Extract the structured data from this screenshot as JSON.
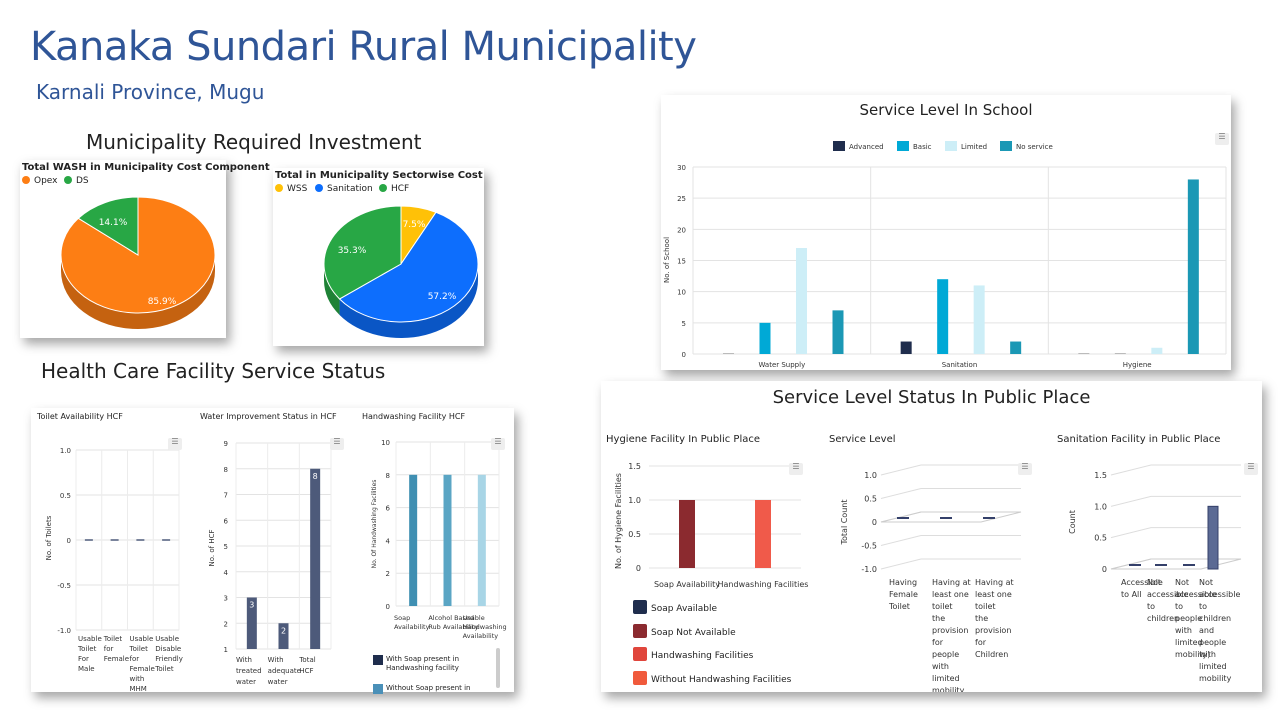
{
  "header": {
    "title": "Kanaka Sundari Rural Municipality",
    "subtitle": "Karnali Province, Mugu"
  },
  "sections": {
    "investment": "Municipality Required Investment",
    "hcf": "Health Care Facility Service Status"
  },
  "ui": {
    "menu_icon": "☰"
  },
  "colors": {
    "brand": "#2f5597",
    "opex": "#fd7e14",
    "ds": "#28a745",
    "wss": "#ffc107",
    "sanitation": "#0d6efd",
    "hcf": "#28a745",
    "advanced": "#1f2d4d",
    "basic": "#00a9d6",
    "limited": "#cdeef7",
    "no_service": "#1b98b5",
    "hcf_bar": "#4d5a7a"
  },
  "chart_data": [
    {
      "type": "pie",
      "title": "Total WASH in Municipality Cost Component",
      "labels": [
        "Opex",
        "DS"
      ],
      "values": [
        85.9,
        14.1
      ],
      "data_labels": [
        "85.9%",
        "14.1%"
      ]
    },
    {
      "type": "pie",
      "title": "Total in Municipality Sectorwise Cost",
      "labels": [
        "WSS",
        "Sanitation",
        "HCF"
      ],
      "values": [
        7.5,
        57.2,
        35.3
      ],
      "data_labels": [
        "7.5%",
        "57.2%",
        "35.3%"
      ]
    },
    {
      "type": "bar",
      "title": "Service Level In School",
      "categories": [
        "Water Supply",
        "Sanitation",
        "Hygiene"
      ],
      "series": [
        {
          "name": "Advanced",
          "values": [
            0,
            2,
            0
          ]
        },
        {
          "name": "Basic",
          "values": [
            5,
            12,
            0
          ]
        },
        {
          "name": "Limited",
          "values": [
            17,
            11,
            1
          ]
        },
        {
          "name": "No service",
          "values": [
            7,
            2,
            28
          ]
        }
      ],
      "ylabel": "No. of School",
      "ylim": [
        0,
        30
      ],
      "yticks": [
        "0",
        "5",
        "10",
        "15",
        "20",
        "25",
        "30"
      ],
      "legend": "top"
    },
    {
      "type": "bar",
      "title": "Toilet Availability HCF",
      "categories": [
        "Usable Toilet For Male",
        "Toilet for Female",
        "Usable Toilet for Female with MHM Facility",
        "Usable Disable Friendly Toilet"
      ],
      "values": [
        0,
        0,
        0,
        0
      ],
      "ylabel": "No. of Toilets",
      "ylim": [
        -1.0,
        1.0
      ],
      "yticks": [
        "1.0",
        "0.5",
        "0",
        "-0.5",
        "-1.0"
      ]
    },
    {
      "type": "bar",
      "title": "Water Improvement Status in HCF",
      "categories": [
        "With treated water",
        "With adequate water",
        "Total HCF"
      ],
      "values": [
        3,
        2,
        8
      ],
      "data_labels": [
        "3",
        "2",
        "8"
      ],
      "ylabel": "No. of HCF",
      "ylim": [
        1,
        9
      ],
      "yticks": [
        "9",
        "8",
        "7",
        "6",
        "5",
        "4",
        "3",
        "2",
        "1"
      ]
    },
    {
      "type": "bar",
      "title": "Handwashing Facility HCF",
      "categories": [
        "Soap Availability",
        "Alcohol Based Rub Availability",
        "Usable Handwashing Availability"
      ],
      "values": [
        8,
        8,
        8
      ],
      "ylabel": "No. Of Handwashing Facilities",
      "ylim": [
        0,
        10
      ],
      "yticks": [
        "10",
        "8",
        "6",
        "4",
        "2",
        "0"
      ],
      "legend_items": [
        "With Soap present in Handwashing facility",
        "Without Soap present in"
      ]
    },
    {
      "type": "bar",
      "title": "Hygiene Facility In Public Place",
      "categories": [
        "Soap Availability",
        "Handwashing Facilities"
      ],
      "values": [
        1,
        1
      ],
      "ylabel": "No. of Hygiene Facilities",
      "ylim": [
        0,
        1.5
      ],
      "yticks": [
        "1.5",
        "1.0",
        "0.5",
        "0"
      ],
      "legend_items": [
        "Soap Available",
        "Soap Not Available",
        "Handwashing Facilities",
        "Without Handwashing Facilities"
      ]
    },
    {
      "type": "bar",
      "title": "Service Level",
      "categories": [
        "Having Female Toilet",
        "Having at least one toilet the provision for people with limited mobility",
        "Having at least one toilet the provision for Children"
      ],
      "values": [
        0,
        0,
        0
      ],
      "ylabel": "Total Count",
      "ylim": [
        -1.0,
        1.0
      ],
      "yticks": [
        "1.0",
        "0.5",
        "0",
        "-0.5",
        "-1.0"
      ]
    },
    {
      "type": "bar",
      "title": "Sanitation Facility in Public Place",
      "categories": [
        "Accessible to All",
        "Not accessible to children",
        "Not accessible to people with limited mobility)",
        "Not accessible to children and people with limited mobility"
      ],
      "values": [
        0,
        0,
        0,
        1
      ],
      "ylabel": "Count",
      "ylim": [
        0,
        1.5
      ],
      "yticks": [
        "1.5",
        "1.0",
        "0.5",
        "0"
      ]
    }
  ],
  "public_place": {
    "title": "Service Level Status In Public Place"
  }
}
